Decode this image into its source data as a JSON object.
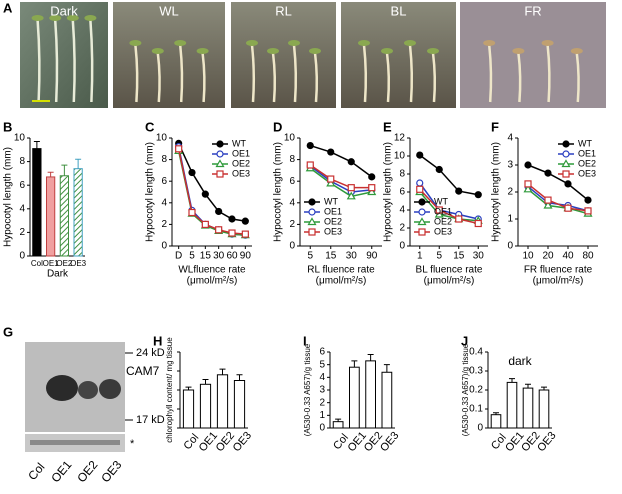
{
  "photos": {
    "panel_label": "A",
    "labels": [
      "Dark",
      "WL",
      "RL",
      "BL",
      "FR"
    ]
  },
  "blot": {
    "panel_label": "G",
    "markers": [
      "24 kD",
      "CAM7",
      "17 kD",
      "*"
    ],
    "lanes": [
      "Col",
      "OE1",
      "OE2",
      "OE3"
    ]
  },
  "chart_data": [
    {
      "panel_label": "B",
      "type": "bar",
      "ylabel": "Hypocotyl length (mm)",
      "xlabel": [
        "Dark"
      ],
      "categories": [
        "Col",
        "OE1",
        "OE2",
        "OE3"
      ],
      "values": [
        9.1,
        6.7,
        6.8,
        7.4
      ],
      "errors": [
        0.6,
        0.4,
        0.9,
        0.8
      ],
      "colors": [
        "#000000",
        "#f0a0a0",
        "#a8d0a0",
        "#a8d8e8"
      ],
      "edge_colors": [
        "#000000",
        "#c04040",
        "#409040",
        "#40a0c0"
      ],
      "hatched": [
        false,
        false,
        true,
        true
      ],
      "ylim": [
        0,
        10
      ],
      "yticks": [
        0,
        2,
        4,
        6,
        8,
        10
      ],
      "show_tick_labels": true
    },
    {
      "panel_label": "C",
      "type": "line",
      "ylabel": "Hypocotyl length (mm)",
      "xlabel": [
        "WLfluence rate",
        "(μmol/m²/s)"
      ],
      "categories": [
        "D",
        "5",
        "15",
        "30",
        "60",
        "90"
      ],
      "legend": "upper right",
      "series": [
        {
          "name": "WT",
          "color": "#000000",
          "marker": "filled-circle",
          "values": [
            9.5,
            6.8,
            4.8,
            3.2,
            2.5,
            2.3
          ]
        },
        {
          "name": "OE1",
          "color": "#2a3fc0",
          "marker": "circle",
          "values": [
            9.2,
            3.3,
            2.0,
            1.5,
            1.1,
            1.0
          ]
        },
        {
          "name": "OE2",
          "color": "#2e9a3a",
          "marker": "triangle",
          "values": [
            8.8,
            3.0,
            1.9,
            1.4,
            1.1,
            1.0
          ]
        },
        {
          "name": "OE3",
          "color": "#c83030",
          "marker": "square",
          "values": [
            9.0,
            3.1,
            2.0,
            1.5,
            1.2,
            1.1
          ]
        }
      ],
      "ylim": [
        0,
        10
      ],
      "yticks": [
        0,
        2,
        4,
        6,
        8,
        10
      ],
      "show_tick_labels": true
    },
    {
      "panel_label": "D",
      "type": "line",
      "ylabel": "Hypocotyl length (mm)",
      "xlabel": [
        "RL fluence rate",
        "(μmol/m²/s)"
      ],
      "categories": [
        "5",
        "15",
        "30",
        "90"
      ],
      "legend": "lower left",
      "series": [
        {
          "name": "WT",
          "color": "#000000",
          "marker": "filled-circle",
          "values": [
            9.3,
            8.7,
            7.8,
            6.4
          ]
        },
        {
          "name": "OE1",
          "color": "#2a3fc0",
          "marker": "circle",
          "values": [
            7.4,
            6.0,
            5.0,
            5.2
          ]
        },
        {
          "name": "OE2",
          "color": "#2e9a3a",
          "marker": "triangle",
          "values": [
            7.2,
            5.8,
            4.6,
            5.0
          ]
        },
        {
          "name": "OE3",
          "color": "#c83030",
          "marker": "square",
          "values": [
            7.5,
            6.2,
            5.4,
            5.4
          ]
        }
      ],
      "ylim": [
        0,
        10
      ],
      "yticks": [
        0,
        2,
        4,
        6,
        8,
        10
      ],
      "show_tick_labels": true
    },
    {
      "panel_label": "E",
      "type": "line",
      "ylabel": "Hypocotyl length (mm)",
      "xlabel": [
        "BL fluence rate",
        "(μmol/m²/s)"
      ],
      "categories": [
        "1",
        "5",
        "15",
        "30"
      ],
      "legend": "lower left",
      "series": [
        {
          "name": "WT",
          "color": "#000000",
          "marker": "filled-circle",
          "values": [
            10.1,
            8.5,
            6.1,
            5.7
          ]
        },
        {
          "name": "OE1",
          "color": "#2a3fc0",
          "marker": "circle",
          "values": [
            7.0,
            4.0,
            3.5,
            3.0
          ]
        },
        {
          "name": "OE2",
          "color": "#2e9a3a",
          "marker": "triangle",
          "values": [
            6.0,
            3.5,
            3.0,
            2.8
          ]
        },
        {
          "name": "OE3",
          "color": "#c83030",
          "marker": "square",
          "values": [
            6.3,
            4.0,
            3.0,
            2.5
          ]
        }
      ],
      "ylim": [
        0,
        12
      ],
      "yticks": [
        0,
        2,
        4,
        6,
        8,
        10,
        12
      ],
      "show_tick_labels": true
    },
    {
      "panel_label": "F",
      "type": "line",
      "ylabel": "Hypocotyl length (mm)",
      "xlabel": [
        "FR fluence rate",
        "(μmol/m²/s)"
      ],
      "categories": [
        "10",
        "20",
        "40",
        "80"
      ],
      "legend": "upper right",
      "series": [
        {
          "name": "WT",
          "color": "#000000",
          "marker": "filled-circle",
          "values": [
            3.0,
            2.7,
            2.3,
            1.7
          ]
        },
        {
          "name": "OE1",
          "color": "#2a3fc0",
          "marker": "circle",
          "values": [
            2.2,
            1.6,
            1.5,
            1.3
          ]
        },
        {
          "name": "OE2",
          "color": "#2e9a3a",
          "marker": "triangle",
          "values": [
            2.1,
            1.5,
            1.4,
            1.2
          ]
        },
        {
          "name": "OE3",
          "color": "#c83030",
          "marker": "square",
          "values": [
            2.3,
            1.7,
            1.4,
            1.3
          ]
        }
      ],
      "ylim": [
        0,
        4
      ],
      "yticks": [
        0,
        1,
        2,
        3,
        4
      ],
      "show_tick_labels": true
    },
    {
      "panel_label": "H",
      "type": "bar",
      "ylabel": "chlorophyll content/ mg tissue",
      "categories": [
        "Col",
        "OE1",
        "OE2",
        "OE3"
      ],
      "values": [
        0.2,
        0.23,
        0.28,
        0.25
      ],
      "errors": [
        0.015,
        0.025,
        0.03,
        0.03
      ],
      "colors": [
        "#ffffff",
        "#ffffff",
        "#ffffff",
        "#ffffff"
      ],
      "edge_colors": [
        "#000000",
        "#000000",
        "#000000",
        "#000000"
      ],
      "hatched": [
        false,
        false,
        false,
        false
      ],
      "ylim": [
        0,
        0.4
      ],
      "yticks": [
        0,
        0.1,
        0.2,
        0.3,
        0.4
      ],
      "show_tick_labels": false
    },
    {
      "panel_label": "I",
      "type": "bar",
      "ylabel": "(A530-0.33 A657)/g tissue",
      "categories": [
        "Col",
        "OE1",
        "OE2",
        "OE3"
      ],
      "values": [
        0.5,
        4.8,
        5.3,
        4.4
      ],
      "errors": [
        0.2,
        0.5,
        0.5,
        0.6
      ],
      "colors": [
        "#ffffff",
        "#ffffff",
        "#ffffff",
        "#ffffff"
      ],
      "edge_colors": [
        "#000000",
        "#000000",
        "#000000",
        "#000000"
      ],
      "hatched": [
        false,
        false,
        false,
        false
      ],
      "ylim": [
        0,
        6
      ],
      "yticks": [
        0,
        1,
        2,
        3,
        4,
        5,
        6
      ],
      "show_tick_labels": true
    },
    {
      "panel_label": "J",
      "type": "bar",
      "ylabel": "(A530-0.33 A657)/g tissue",
      "annotation": "dark",
      "categories": [
        "Col",
        "OE1",
        "OE2",
        "OE3"
      ],
      "values": [
        0.07,
        0.24,
        0.21,
        0.2
      ],
      "errors": [
        0.01,
        0.02,
        0.02,
        0.015
      ],
      "colors": [
        "#ffffff",
        "#ffffff",
        "#ffffff",
        "#ffffff"
      ],
      "edge_colors": [
        "#000000",
        "#000000",
        "#000000",
        "#000000"
      ],
      "hatched": [
        false,
        false,
        false,
        false
      ],
      "ylim": [
        0,
        0.4
      ],
      "yticks": [
        0,
        0.1,
        0.2,
        0.3,
        0.4
      ],
      "show_tick_labels": true
    }
  ]
}
